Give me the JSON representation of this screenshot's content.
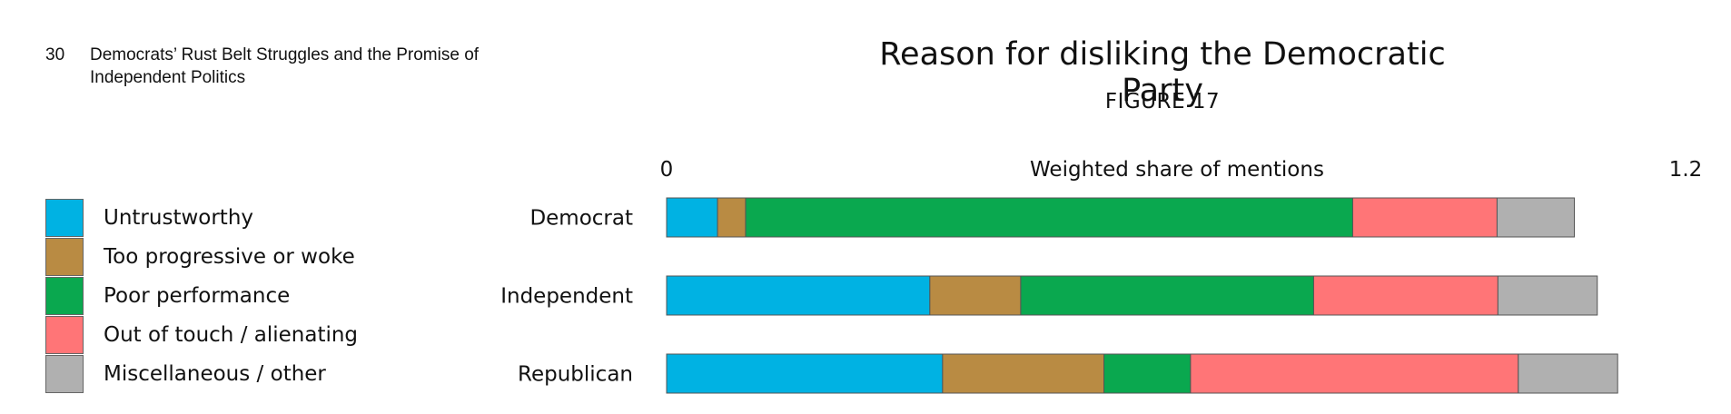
{
  "header": {
    "page_number": "30",
    "document_title": "Democrats’ Rust Belt Struggles and the Promise of Independent Politics"
  },
  "chart_data": {
    "type": "bar",
    "orientation": "horizontal",
    "stacked": true,
    "title": "Reason for disliking the Democratic Party",
    "subtitle": "FIGURE 17",
    "xlabel": "Weighted share of mentions",
    "x_min_label": "0",
    "x_max_label": "1.2",
    "xlim": [
      0,
      1.2
    ],
    "categories": [
      "Democrat",
      "Independent",
      "Republican"
    ],
    "series": [
      {
        "name": "Untrustworthy",
        "color": "#00b2e3",
        "values": [
          0.06,
          0.31,
          0.325
        ]
      },
      {
        "name": "Too progressive or woke",
        "color": "#b98b43",
        "values": [
          0.033,
          0.107,
          0.19
        ]
      },
      {
        "name": "Poor performance",
        "color": "#0aa84f",
        "values": [
          0.715,
          0.345,
          0.102
        ]
      },
      {
        "name": "Out of touch / alienating",
        "color": "#ff7577",
        "values": [
          0.17,
          0.217,
          0.386
        ]
      },
      {
        "name": "Miscellaneous / other",
        "color": "#b0b0b0",
        "values": [
          0.091,
          0.117,
          0.117
        ]
      }
    ],
    "legend_position": "left",
    "grid": false
  }
}
